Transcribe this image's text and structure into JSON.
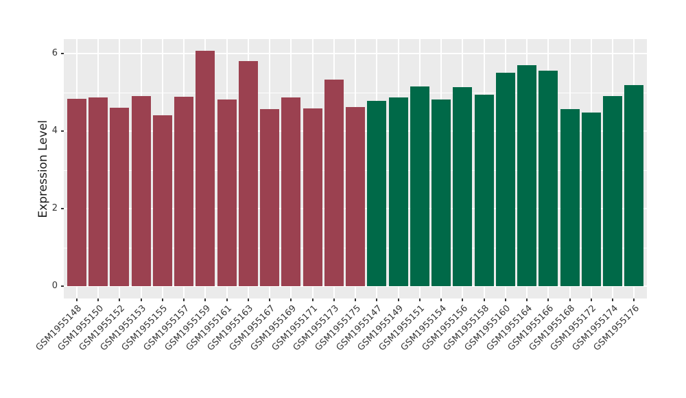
{
  "chart_data": {
    "type": "bar",
    "title": "",
    "xlabel": "",
    "ylabel": "Expression Level",
    "ylim": [
      0,
      6.38
    ],
    "y_major_ticks": [
      0,
      2,
      4,
      6
    ],
    "y_minor_ticks": [
      1,
      3,
      5
    ],
    "grid": "on",
    "legend": "none",
    "panel_background": "#EBEBEB",
    "gridline_color": "#FFFFFF",
    "axis_text_color": "#333333",
    "bar_colors": {
      "maroon": "#9B4150",
      "green": "#006948"
    },
    "bars": [
      {
        "label": "GSM1955148",
        "value": 4.83,
        "color": "maroon"
      },
      {
        "label": "GSM1955150",
        "value": 4.87,
        "color": "maroon"
      },
      {
        "label": "GSM1955152",
        "value": 4.61,
        "color": "maroon"
      },
      {
        "label": "GSM1955153",
        "value": 4.9,
        "color": "maroon"
      },
      {
        "label": "GSM1955155",
        "value": 4.41,
        "color": "maroon"
      },
      {
        "label": "GSM1955157",
        "value": 4.89,
        "color": "maroon"
      },
      {
        "label": "GSM1955159",
        "value": 6.07,
        "color": "maroon"
      },
      {
        "label": "GSM1955161",
        "value": 4.81,
        "color": "maroon"
      },
      {
        "label": "GSM1955163",
        "value": 5.81,
        "color": "maroon"
      },
      {
        "label": "GSM1955167",
        "value": 4.57,
        "color": "maroon"
      },
      {
        "label": "GSM1955169",
        "value": 4.86,
        "color": "maroon"
      },
      {
        "label": "GSM1955171",
        "value": 4.59,
        "color": "maroon"
      },
      {
        "label": "GSM1955173",
        "value": 5.32,
        "color": "maroon"
      },
      {
        "label": "GSM1955175",
        "value": 4.62,
        "color": "maroon"
      },
      {
        "label": "GSM1955147",
        "value": 4.77,
        "color": "green"
      },
      {
        "label": "GSM1955149",
        "value": 4.86,
        "color": "green"
      },
      {
        "label": "GSM1955151",
        "value": 5.15,
        "color": "green"
      },
      {
        "label": "GSM1955154",
        "value": 4.81,
        "color": "green"
      },
      {
        "label": "GSM1955156",
        "value": 5.13,
        "color": "green"
      },
      {
        "label": "GSM1955158",
        "value": 4.93,
        "color": "green"
      },
      {
        "label": "GSM1955160",
        "value": 5.51,
        "color": "green"
      },
      {
        "label": "GSM1955164",
        "value": 5.7,
        "color": "green"
      },
      {
        "label": "GSM1955166",
        "value": 5.56,
        "color": "green"
      },
      {
        "label": "GSM1955168",
        "value": 4.57,
        "color": "green"
      },
      {
        "label": "GSM1955172",
        "value": 4.48,
        "color": "green"
      },
      {
        "label": "GSM1955174",
        "value": 4.9,
        "color": "green"
      },
      {
        "label": "GSM1955176",
        "value": 5.19,
        "color": "green"
      }
    ]
  }
}
